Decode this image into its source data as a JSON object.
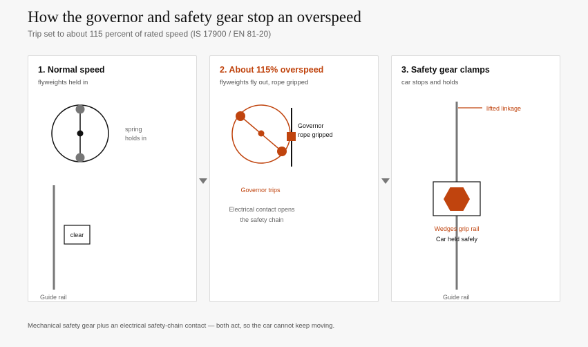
{
  "title": "How the governor and safety gear stop an overspeed",
  "subtitle": "Trip set to about 115 percent of rated speed (IS 17900 / EN 81-20)",
  "colors": {
    "accent": "#c0440e",
    "ink": "#111111",
    "grey": "#777777"
  },
  "panels": [
    {
      "title": "1. Normal speed",
      "subtitle": "flyweights held in",
      "spring_label_1": "spring",
      "spring_label_2": "holds in",
      "clear_label": "clear",
      "rail_label": "Guide rail"
    },
    {
      "title": "2. About 115% overspeed",
      "subtitle": "flyweights fly out, rope gripped",
      "governor_label_1": "Governor",
      "governor_label_2": "rope gripped",
      "trips_label": "Governor trips",
      "contact_label_1": "Electrical contact opens",
      "contact_label_2": "the safety chain"
    },
    {
      "title": "3. Safety gear clamps",
      "subtitle": "car stops and holds",
      "linkage_label": "lifted linkage",
      "wedges_label": "Wedges grip rail",
      "held_label": "Car held safely",
      "rail_label": "Guide rail"
    }
  ],
  "footer": "Mechanical safety gear plus an electrical safety-chain contact — both act, so the car cannot keep moving."
}
